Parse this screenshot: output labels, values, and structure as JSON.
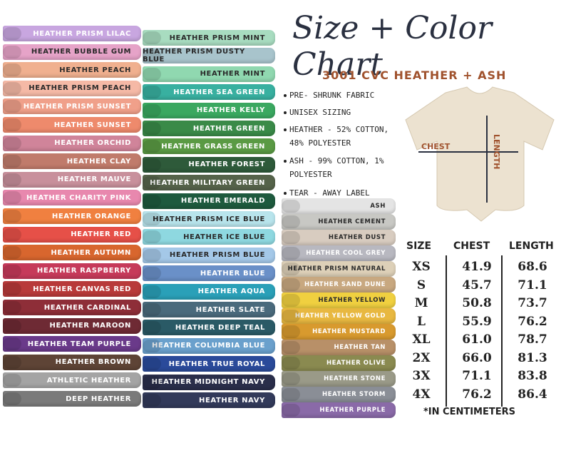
{
  "header": {
    "title": "Size + Color Chart",
    "subtitle": "3001 CVC HEATHER + ASH"
  },
  "features": [
    "PRE- SHRUNK FABRIC",
    "UNISEX SIZING",
    "HEATHER - 52% COTTON, 48% POLYESTER",
    "ASH -  99% COTTON, 1% POLYESTER",
    "TEAR -  AWAY LABEL"
  ],
  "shirt": {
    "length_label": "LENGTH",
    "chest_label": "CHEST"
  },
  "color_columns": [
    [
      {
        "name": "HEATHER PRISM LILAC",
        "color": "#c8a6e0"
      },
      {
        "name": "HEATHER BUBBLE GUM",
        "color": "#e6a3c8"
      },
      {
        "name": "HEATHER PEACH",
        "color": "#f0b08f"
      },
      {
        "name": "HEATHER PRISM PEACH",
        "color": "#f5b9a6"
      },
      {
        "name": "HEATHER PRISM SUNSET",
        "color": "#f0a08a"
      },
      {
        "name": "HEATHER SUNSET",
        "color": "#ee8a6c"
      },
      {
        "name": "HEATHER ORCHID",
        "color": "#d0849a"
      },
      {
        "name": "HEATHER CLAY",
        "color": "#c07b6b"
      },
      {
        "name": "HEATHER MAUVE",
        "color": "#c8909c"
      },
      {
        "name": "HEATHER CHARITY PINK",
        "color": "#e888ae"
      },
      {
        "name": "HEATHER ORANGE",
        "color": "#f08040"
      },
      {
        "name": "HEATHER RED",
        "color": "#e65048"
      },
      {
        "name": "HEATHER AUTUMN",
        "color": "#d8662e"
      },
      {
        "name": "HEATHER RASPBERRY",
        "color": "#c63a5a"
      },
      {
        "name": "HEATHER CANVAS RED",
        "color": "#b83a3a"
      },
      {
        "name": "HEATHER CARDINAL",
        "color": "#8e2e38"
      },
      {
        "name": "HEATHER MAROON",
        "color": "#6e2a34"
      },
      {
        "name": "HEATHER TEAM PURPLE",
        "color": "#6a3a8a"
      },
      {
        "name": "HEATHER BROWN",
        "color": "#5e4436"
      },
      {
        "name": "ATHLETIC HEATHER",
        "color": "#a4a4a4"
      },
      {
        "name": "DEEP HEATHER",
        "color": "#7a7a7a"
      }
    ],
    [
      {
        "name": "HEATHER PRISM MINT",
        "color": "#a8dcc0"
      },
      {
        "name": "HEATHER PRISM DUSTY BLUE",
        "color": "#a8c4cc"
      },
      {
        "name": "HEATHER MINT",
        "color": "#90d8b0"
      },
      {
        "name": "HEATHER SEA GREEN",
        "color": "#38b0a0"
      },
      {
        "name": "HEATHER KELLY",
        "color": "#3aa860"
      },
      {
        "name": "HEATHER GREEN",
        "color": "#3a8a48"
      },
      {
        "name": "HEATHER GRASS GREEN",
        "color": "#5a9a44"
      },
      {
        "name": "HEATHER FOREST",
        "color": "#2e5a3a"
      },
      {
        "name": "HEATHER MILITARY GREEN",
        "color": "#55634a"
      },
      {
        "name": "HEATHER EMERALD",
        "color": "#1e5a3e"
      },
      {
        "name": "HEATHER PRISM ICE BLUE",
        "color": "#b8e4ec"
      },
      {
        "name": "HEATHER ICE BLUE",
        "color": "#8ed8e0"
      },
      {
        "name": "HEATHER PRISM BLUE",
        "color": "#a4c8e8"
      },
      {
        "name": "HEATHER BLUE",
        "color": "#6a90c8"
      },
      {
        "name": "HEATHER AQUA",
        "color": "#2aa0b8"
      },
      {
        "name": "HEATHER SLATE",
        "color": "#4a6a7c"
      },
      {
        "name": "HEATHER DEEP TEAL",
        "color": "#2a5a66"
      },
      {
        "name": "HEATHER COLUMBIA BLUE",
        "color": "#6aa0cc"
      },
      {
        "name": "HEATHER TRUE ROYAL",
        "color": "#2a4a9a"
      },
      {
        "name": "HEATHER MIDNIGHT NAVY",
        "color": "#2a2e4a"
      },
      {
        "name": "HEATHER NAVY",
        "color": "#323a5a"
      }
    ],
    [
      {
        "name": "ASH",
        "color": "#e4e4e4"
      },
      {
        "name": "HEATHER CEMENT",
        "color": "#c8c8c4"
      },
      {
        "name": "HEATHER DUST",
        "color": "#d8ccc0"
      },
      {
        "name": "HEATHER COOL GREY",
        "color": "#b8b8c0"
      },
      {
        "name": "HEATHER PRISM NATURAL",
        "color": "#ddd0b8"
      },
      {
        "name": "HEATHER SAND DUNE",
        "color": "#c8a880"
      },
      {
        "name": "HEATHER YELLOW",
        "color": "#f0d040"
      },
      {
        "name": "HEATHER YELLOW GOLD",
        "color": "#e8b840"
      },
      {
        "name": "HEATHER MUSTARD",
        "color": "#d89a2e"
      },
      {
        "name": "HEATHER TAN",
        "color": "#b89068"
      },
      {
        "name": "HEATHER OLIVE",
        "color": "#8a8a50"
      },
      {
        "name": "HEATHER STONE",
        "color": "#9a9a88"
      },
      {
        "name": "HEATHER STORM",
        "color": "#8a8e96"
      },
      {
        "name": "HEATHER PURPLE",
        "color": "#8a6aa8"
      }
    ]
  ],
  "size_table": {
    "columns": [
      "SIZE",
      "CHEST",
      "LENGTH"
    ],
    "rows": [
      [
        "XS",
        "41.9",
        "68.6"
      ],
      [
        "S",
        "45.7",
        "71.1"
      ],
      [
        "M",
        "50.8",
        "73.7"
      ],
      [
        "L",
        "55.9",
        "76.2"
      ],
      [
        "XL",
        "61.0",
        "78.7"
      ],
      [
        "2X",
        "66.0",
        "81.3"
      ],
      [
        "3X",
        "71.1",
        "83.8"
      ],
      [
        "4X",
        "76.2",
        "86.4"
      ]
    ],
    "note": "*IN CENTIMETERS"
  }
}
